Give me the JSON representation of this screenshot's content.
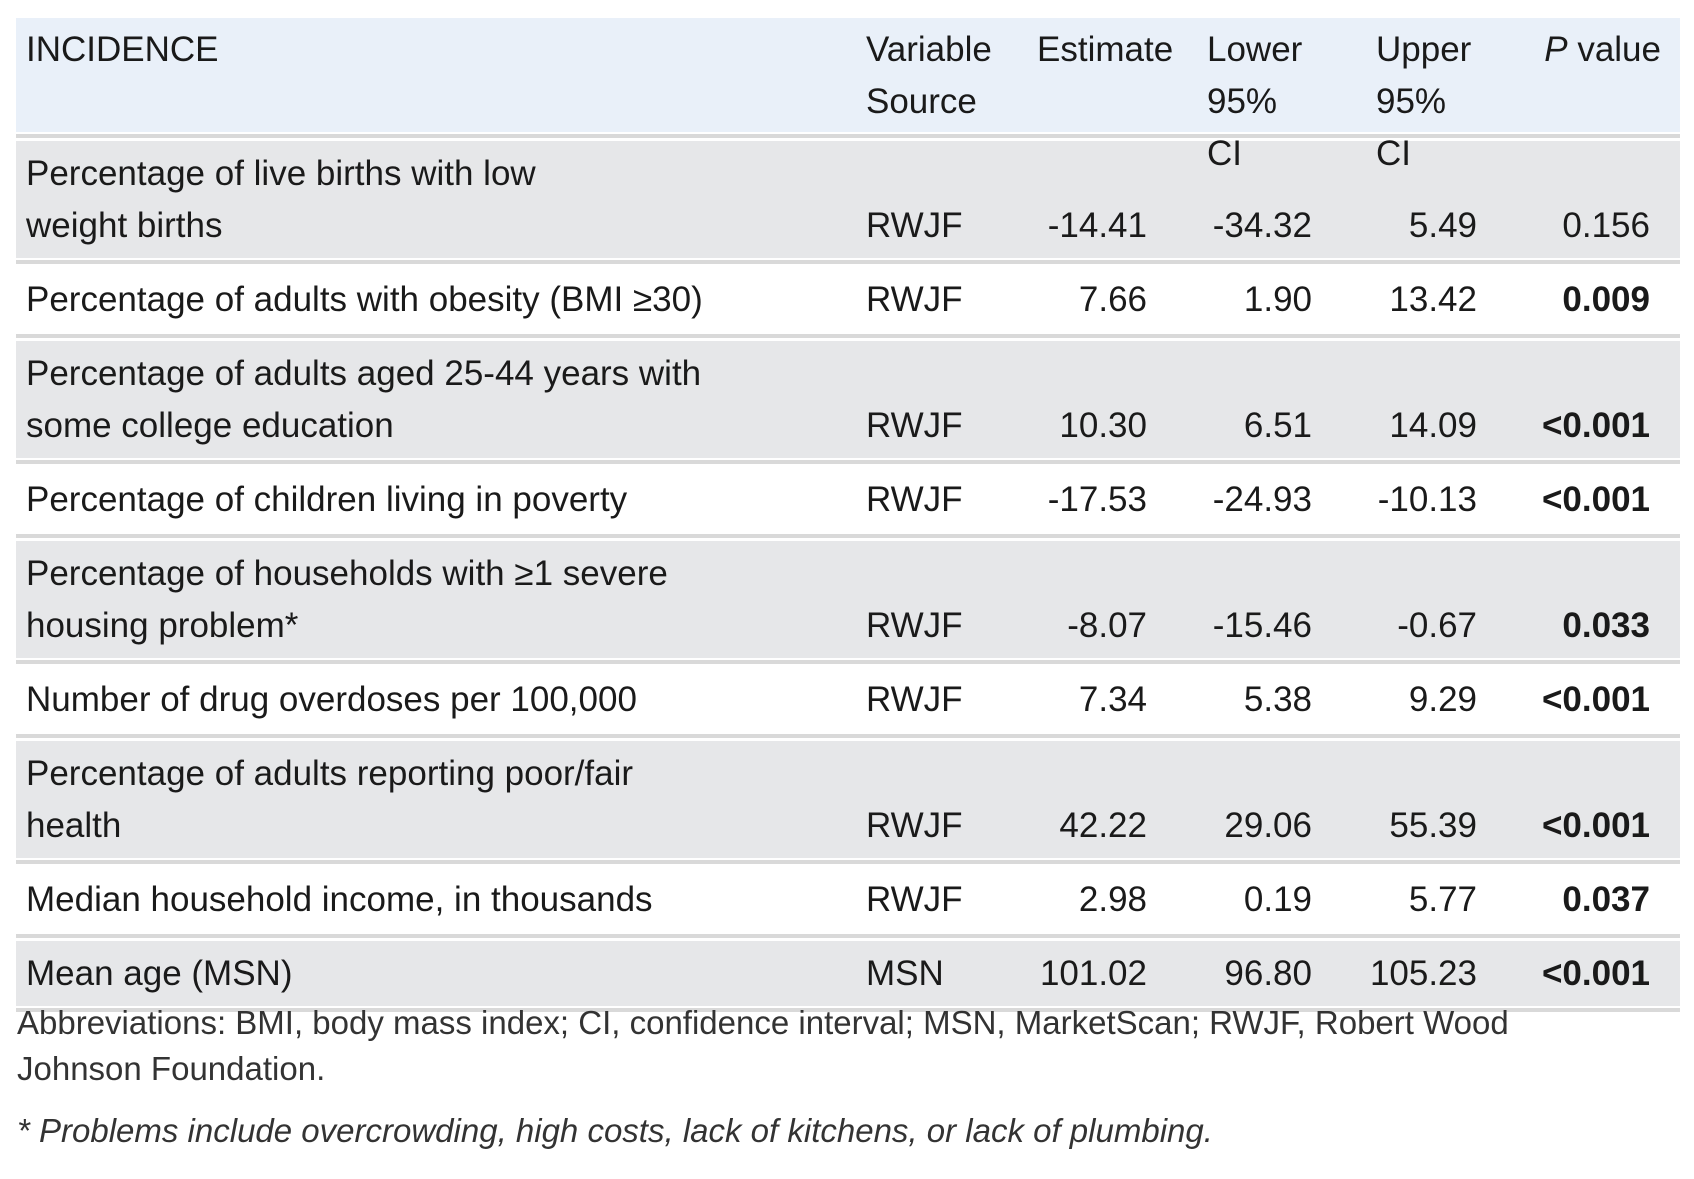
{
  "header": {
    "title": "INCIDENCE",
    "source": "Variable\nSource",
    "estimate": "Estimate",
    "lower": "Lower\n95% CI",
    "upper": "Upper\n95% CI",
    "p_italic": "P",
    "p_rest": " value"
  },
  "rows": [
    {
      "label": "Percentage of live births with low\nweight births",
      "source": "RWJF",
      "estimate": "-14.41",
      "lower": "-34.32",
      "upper": "5.49",
      "p": "0.156",
      "significant": false
    },
    {
      "label": "Percentage of adults with obesity (BMI ≥30)",
      "source": "RWJF",
      "estimate": "7.66",
      "lower": "1.90",
      "upper": "13.42",
      "p": "0.009",
      "significant": true
    },
    {
      "label": "Percentage of adults aged 25-44 years with\nsome college education",
      "source": "RWJF",
      "estimate": "10.30",
      "lower": "6.51",
      "upper": "14.09",
      "p": "<0.001",
      "significant": true
    },
    {
      "label": "Percentage of children living in poverty",
      "source": "RWJF",
      "estimate": "-17.53",
      "lower": "-24.93",
      "upper": "-10.13",
      "p": "<0.001",
      "significant": true
    },
    {
      "label": "Percentage of households with ≥1 severe\nhousing problem*",
      "source": "RWJF",
      "estimate": "-8.07",
      "lower": "-15.46",
      "upper": "-0.67",
      "p": "0.033",
      "significant": true
    },
    {
      "label": "Number of drug overdoses per 100,000",
      "source": "RWJF",
      "estimate": "7.34",
      "lower": "5.38",
      "upper": "9.29",
      "p": "<0.001",
      "significant": true
    },
    {
      "label": "Percentage of adults reporting poor/fair\nhealth",
      "source": "RWJF",
      "estimate": "42.22",
      "lower": "29.06",
      "upper": "55.39",
      "p": "<0.001",
      "significant": true
    },
    {
      "label": "Median household income, in thousands",
      "source": "RWJF",
      "estimate": "2.98",
      "lower": "0.19",
      "upper": "5.77",
      "p": "0.037",
      "significant": true
    },
    {
      "label": "Mean age (MSN)",
      "source": "MSN",
      "estimate": "101.02",
      "lower": "96.80",
      "upper": "105.23",
      "p": "<0.001",
      "significant": true
    }
  ],
  "footnotes": {
    "abbreviations": "Abbreviations: BMI, body mass index; CI, confidence interval; MSN, MarketScan; RWJF, Robert Wood Johnson Foundation.",
    "note": "* Problems include overcrowding, high costs, lack of kitchens, or lack of plumbing."
  },
  "colors": {
    "header_bg": "#e9f0f9",
    "shaded_row_bg": "#e6e7e9",
    "separator": "#d9d9d9"
  }
}
